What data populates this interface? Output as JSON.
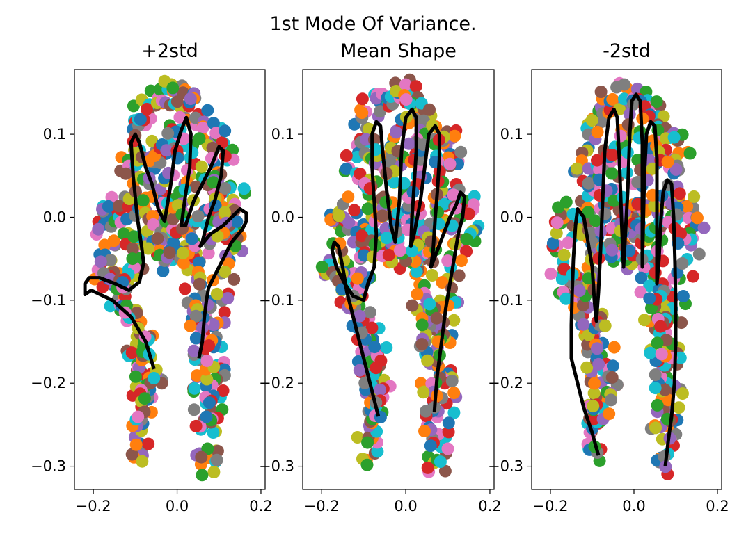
{
  "suptitle_line1": "1st Mode Of Variance.",
  "chart_data": [
    {
      "type": "scatter",
      "title": "+2std",
      "xlim": [
        -0.245,
        0.21
      ],
      "ylim": [
        -0.328,
        0.178
      ],
      "xticks": [
        -0.2,
        0.0,
        0.2
      ],
      "xtick_labels": [
        "−0.2",
        "0.0",
        "0.2"
      ],
      "yticks": [
        0.1,
        0.0,
        -0.1,
        -0.2,
        -0.3
      ],
      "ytick_labels": [
        "0.1",
        "0.0",
        "−0.1",
        "−0.2",
        "−0.3"
      ],
      "line": {
        "color": "#000000",
        "points": [
          [
            -0.055,
            -0.183
          ],
          [
            -0.075,
            -0.15
          ],
          [
            -0.11,
            -0.12
          ],
          [
            -0.155,
            -0.1
          ],
          [
            -0.205,
            -0.088
          ],
          [
            -0.22,
            -0.093
          ],
          [
            -0.22,
            -0.08
          ],
          [
            -0.21,
            -0.073
          ],
          [
            -0.185,
            -0.073
          ],
          [
            -0.148,
            -0.08
          ],
          [
            -0.115,
            -0.088
          ],
          [
            -0.09,
            -0.078
          ],
          [
            -0.08,
            -0.055
          ],
          [
            -0.085,
            -0.035
          ],
          [
            -0.095,
            0.0
          ],
          [
            -0.105,
            0.05
          ],
          [
            -0.11,
            0.09
          ],
          [
            -0.1,
            0.1
          ],
          [
            -0.09,
            0.09
          ],
          [
            -0.075,
            0.06
          ],
          [
            -0.06,
            0.04
          ],
          [
            -0.045,
            0.01
          ],
          [
            -0.03,
            -0.005
          ],
          [
            -0.015,
            0.04
          ],
          [
            -0.005,
            0.08
          ],
          [
            0.01,
            0.105
          ],
          [
            0.022,
            0.12
          ],
          [
            0.033,
            0.1
          ],
          [
            0.03,
            0.06
          ],
          [
            0.018,
            0.02
          ],
          [
            0.01,
            -0.01
          ],
          [
            0.02,
            -0.01
          ],
          [
            0.04,
            0.02
          ],
          [
            0.06,
            0.04
          ],
          [
            0.08,
            0.06
          ],
          [
            0.1,
            0.085
          ],
          [
            0.11,
            0.08
          ],
          [
            0.105,
            0.05
          ],
          [
            0.09,
            0.02
          ],
          [
            0.075,
            0.0
          ],
          [
            0.06,
            -0.03
          ],
          [
            0.055,
            -0.035
          ],
          [
            0.08,
            -0.02
          ],
          [
            0.11,
            -0.01
          ],
          [
            0.13,
            0.0
          ],
          [
            0.15,
            0.01
          ],
          [
            0.165,
            0.005
          ],
          [
            0.165,
            -0.005
          ],
          [
            0.155,
            -0.015
          ],
          [
            0.13,
            -0.03
          ],
          [
            0.11,
            -0.05
          ],
          [
            0.09,
            -0.07
          ],
          [
            0.075,
            -0.085
          ],
          [
            0.07,
            -0.1
          ],
          [
            0.065,
            -0.12
          ],
          [
            0.06,
            -0.15
          ],
          [
            0.052,
            -0.17
          ]
        ]
      }
    },
    {
      "type": "scatter",
      "title_line1": "",
      "title_line2": "Mean Shape",
      "xlim": [
        -0.245,
        0.21
      ],
      "ylim": [
        -0.328,
        0.178
      ],
      "xticks": [
        -0.2,
        0.0,
        0.2
      ],
      "xtick_labels": [
        "−0.2",
        "0.0",
        "0.2"
      ],
      "yticks": [
        0.1,
        0.0,
        -0.1,
        -0.2,
        -0.3
      ],
      "ytick_labels": [
        "0.1",
        "0.0",
        "−0.1",
        "−0.2",
        "−0.3"
      ],
      "line": {
        "color": "#000000",
        "points": [
          [
            -0.065,
            -0.24
          ],
          [
            -0.085,
            -0.2
          ],
          [
            -0.105,
            -0.16
          ],
          [
            -0.125,
            -0.12
          ],
          [
            -0.14,
            -0.09
          ],
          [
            -0.15,
            -0.06
          ],
          [
            -0.16,
            -0.035
          ],
          [
            -0.17,
            -0.03
          ],
          [
            -0.175,
            -0.04
          ],
          [
            -0.165,
            -0.06
          ],
          [
            -0.145,
            -0.08
          ],
          [
            -0.125,
            -0.095
          ],
          [
            -0.1,
            -0.1
          ],
          [
            -0.09,
            -0.08
          ],
          [
            -0.075,
            -0.06
          ],
          [
            -0.07,
            -0.02
          ],
          [
            -0.075,
            0.02
          ],
          [
            -0.08,
            0.06
          ],
          [
            -0.08,
            0.1
          ],
          [
            -0.07,
            0.115
          ],
          [
            -0.06,
            0.11
          ],
          [
            -0.055,
            0.08
          ],
          [
            -0.045,
            0.03
          ],
          [
            -0.035,
            -0.01
          ],
          [
            -0.025,
            -0.03
          ],
          [
            -0.015,
            0.02
          ],
          [
            -0.01,
            0.08
          ],
          [
            0.0,
            0.12
          ],
          [
            0.015,
            0.13
          ],
          [
            0.025,
            0.12
          ],
          [
            0.025,
            0.08
          ],
          [
            0.02,
            0.04
          ],
          [
            0.015,
            0.0
          ],
          [
            0.012,
            -0.035
          ],
          [
            0.02,
            -0.02
          ],
          [
            0.035,
            0.02
          ],
          [
            0.045,
            0.06
          ],
          [
            0.055,
            0.1
          ],
          [
            0.07,
            0.11
          ],
          [
            0.08,
            0.1
          ],
          [
            0.08,
            0.07
          ],
          [
            0.075,
            0.03
          ],
          [
            0.07,
            0.0
          ],
          [
            0.065,
            -0.04
          ],
          [
            0.06,
            -0.06
          ],
          [
            0.075,
            -0.04
          ],
          [
            0.09,
            -0.02
          ],
          [
            0.105,
            0.0
          ],
          [
            0.12,
            0.015
          ],
          [
            0.13,
            0.03
          ],
          [
            0.14,
            0.025
          ],
          [
            0.135,
            0.0
          ],
          [
            0.125,
            -0.02
          ],
          [
            0.115,
            -0.05
          ],
          [
            0.105,
            -0.08
          ],
          [
            0.095,
            -0.11
          ],
          [
            0.085,
            -0.15
          ],
          [
            0.075,
            -0.19
          ],
          [
            0.07,
            -0.22
          ],
          [
            0.068,
            -0.235
          ]
        ]
      }
    },
    {
      "type": "scatter",
      "title": "-2std",
      "xlim": [
        -0.245,
        0.21
      ],
      "ylim": [
        -0.328,
        0.178
      ],
      "xticks": [
        -0.2,
        0.0,
        0.2
      ],
      "xtick_labels": [
        "−0.2",
        "0.0",
        "0.2"
      ],
      "yticks": [
        0.1,
        0.0,
        -0.1,
        -0.2,
        -0.3
      ],
      "ytick_labels": [
        "0.1",
        "0.0",
        "−0.1",
        "−0.2",
        "−0.3"
      ],
      "line": {
        "color": "#000000",
        "points": [
          [
            -0.085,
            -0.287
          ],
          [
            -0.1,
            -0.26
          ],
          [
            -0.12,
            -0.23
          ],
          [
            -0.135,
            -0.2
          ],
          [
            -0.15,
            -0.17
          ],
          [
            -0.15,
            -0.13
          ],
          [
            -0.148,
            -0.09
          ],
          [
            -0.145,
            -0.05
          ],
          [
            -0.14,
            -0.01
          ],
          [
            -0.135,
            0.01
          ],
          [
            -0.12,
            0.0
          ],
          [
            -0.11,
            -0.03
          ],
          [
            -0.1,
            -0.06
          ],
          [
            -0.095,
            -0.1
          ],
          [
            -0.09,
            -0.125
          ],
          [
            -0.085,
            -0.09
          ],
          [
            -0.08,
            -0.04
          ],
          [
            -0.075,
            0.02
          ],
          [
            -0.07,
            0.08
          ],
          [
            -0.06,
            0.12
          ],
          [
            -0.048,
            0.13
          ],
          [
            -0.04,
            0.12
          ],
          [
            -0.035,
            0.07
          ],
          [
            -0.03,
            0.0
          ],
          [
            -0.025,
            -0.06
          ],
          [
            -0.015,
            0.03
          ],
          [
            -0.01,
            0.1
          ],
          [
            -0.005,
            0.14
          ],
          [
            0.005,
            0.148
          ],
          [
            0.015,
            0.14
          ],
          [
            0.02,
            0.09
          ],
          [
            0.02,
            0.02
          ],
          [
            0.02,
            -0.06
          ],
          [
            0.025,
            0.05
          ],
          [
            0.03,
            0.1
          ],
          [
            0.04,
            0.115
          ],
          [
            0.05,
            0.11
          ],
          [
            0.055,
            0.07
          ],
          [
            0.055,
            0.02
          ],
          [
            0.055,
            -0.03
          ],
          [
            0.055,
            -0.08
          ],
          [
            0.06,
            -0.05
          ],
          [
            0.065,
            0.0
          ],
          [
            0.07,
            0.03
          ],
          [
            0.08,
            0.045
          ],
          [
            0.09,
            0.04
          ],
          [
            0.095,
            0.0
          ],
          [
            0.098,
            -0.05
          ],
          [
            0.1,
            -0.1
          ],
          [
            0.1,
            -0.15
          ],
          [
            0.097,
            -0.2
          ],
          [
            0.09,
            -0.24
          ],
          [
            0.082,
            -0.27
          ],
          [
            0.075,
            -0.3
          ]
        ]
      }
    }
  ],
  "scatter_colors": [
    "#1f77b4",
    "#ff7f0e",
    "#2ca02c",
    "#d62728",
    "#9467bd",
    "#8c564b",
    "#e377c2",
    "#7f7f7f",
    "#bcbd22",
    "#17becf"
  ],
  "cloud_landmarks": [
    [
      -0.09,
      -0.285
    ],
    [
      -0.09,
      -0.262
    ],
    [
      -0.088,
      -0.24
    ],
    [
      -0.085,
      -0.218
    ],
    [
      -0.085,
      -0.197
    ],
    [
      -0.09,
      -0.175
    ],
    [
      -0.1,
      -0.155
    ],
    [
      -0.11,
      -0.13
    ],
    [
      -0.12,
      -0.105
    ],
    [
      -0.135,
      -0.085
    ],
    [
      -0.155,
      -0.07
    ],
    [
      -0.17,
      -0.045
    ],
    [
      -0.17,
      -0.02
    ],
    [
      -0.16,
      0.0
    ],
    [
      -0.14,
      0.01
    ],
    [
      -0.12,
      0.0
    ],
    [
      -0.11,
      -0.03
    ],
    [
      -0.1,
      -0.06
    ],
    [
      -0.09,
      -0.035
    ],
    [
      -0.08,
      -0.01
    ],
    [
      -0.07,
      0.01
    ],
    [
      -0.05,
      0.03
    ],
    [
      -0.04,
      0.01
    ],
    [
      -0.035,
      -0.02
    ],
    [
      -0.03,
      -0.05
    ],
    [
      -0.02,
      -0.03
    ],
    [
      -0.015,
      -0.01
    ],
    [
      0.0,
      0.01
    ],
    [
      0.015,
      0.005
    ],
    [
      0.025,
      -0.02
    ],
    [
      0.03,
      -0.05
    ],
    [
      0.04,
      -0.06
    ],
    [
      0.05,
      -0.04
    ],
    [
      0.06,
      -0.02
    ],
    [
      0.07,
      0.0
    ],
    [
      0.09,
      0.02
    ],
    [
      0.11,
      0.025
    ],
    [
      0.14,
      0.02
    ],
    [
      0.15,
      -0.005
    ],
    [
      0.14,
      -0.03
    ],
    [
      0.12,
      -0.06
    ],
    [
      0.1,
      -0.09
    ],
    [
      0.09,
      -0.12
    ],
    [
      0.085,
      -0.15
    ],
    [
      0.09,
      -0.18
    ],
    [
      0.095,
      -0.205
    ],
    [
      0.09,
      -0.23
    ],
    [
      0.085,
      -0.255
    ],
    [
      0.075,
      -0.28
    ],
    [
      0.07,
      -0.3
    ],
    [
      0.06,
      -0.2
    ],
    [
      0.065,
      -0.17
    ],
    [
      0.07,
      -0.14
    ],
    [
      0.06,
      -0.12
    ],
    [
      -0.1,
      0.12
    ],
    [
      -0.08,
      0.13
    ],
    [
      -0.06,
      0.14
    ],
    [
      -0.04,
      0.14
    ],
    [
      -0.02,
      0.15
    ],
    [
      0.0,
      0.155
    ],
    [
      0.02,
      0.145
    ],
    [
      0.04,
      0.13
    ],
    [
      0.06,
      0.115
    ],
    [
      0.08,
      0.1
    ],
    [
      0.1,
      0.09
    ],
    [
      0.11,
      0.07
    ],
    [
      -0.11,
      0.09
    ],
    [
      -0.12,
      0.07
    ],
    [
      -0.1,
      0.05
    ],
    [
      -0.09,
      0.03
    ],
    [
      -0.07,
      0.06
    ],
    [
      -0.05,
      0.08
    ],
    [
      -0.03,
      0.06
    ],
    [
      -0.02,
      0.09
    ],
    [
      0.0,
      0.11
    ],
    [
      0.02,
      0.08
    ],
    [
      0.04,
      0.06
    ],
    [
      0.06,
      0.08
    ],
    [
      0.08,
      0.06
    ],
    [
      0.09,
      0.03
    ],
    [
      0.1,
      0.0
    ],
    [
      0.12,
      -0.02
    ],
    [
      -0.18,
      -0.06
    ],
    [
      -0.16,
      -0.08
    ],
    [
      -0.14,
      -0.1
    ],
    [
      -0.12,
      -0.08
    ],
    [
      -0.1,
      -0.12
    ],
    [
      -0.08,
      -0.14
    ],
    [
      -0.07,
      -0.17
    ],
    [
      -0.06,
      -0.19
    ],
    [
      0.05,
      -0.08
    ],
    [
      0.04,
      -0.1
    ],
    [
      0.05,
      -0.13
    ],
    [
      0.055,
      -0.16
    ],
    [
      0.06,
      -0.22
    ],
    [
      0.065,
      -0.245
    ],
    [
      -0.075,
      -0.205
    ],
    [
      -0.078,
      -0.23
    ],
    [
      0.02,
      0.03
    ],
    [
      -0.06,
      -0.04
    ],
    [
      0.0,
      -0.05
    ]
  ]
}
